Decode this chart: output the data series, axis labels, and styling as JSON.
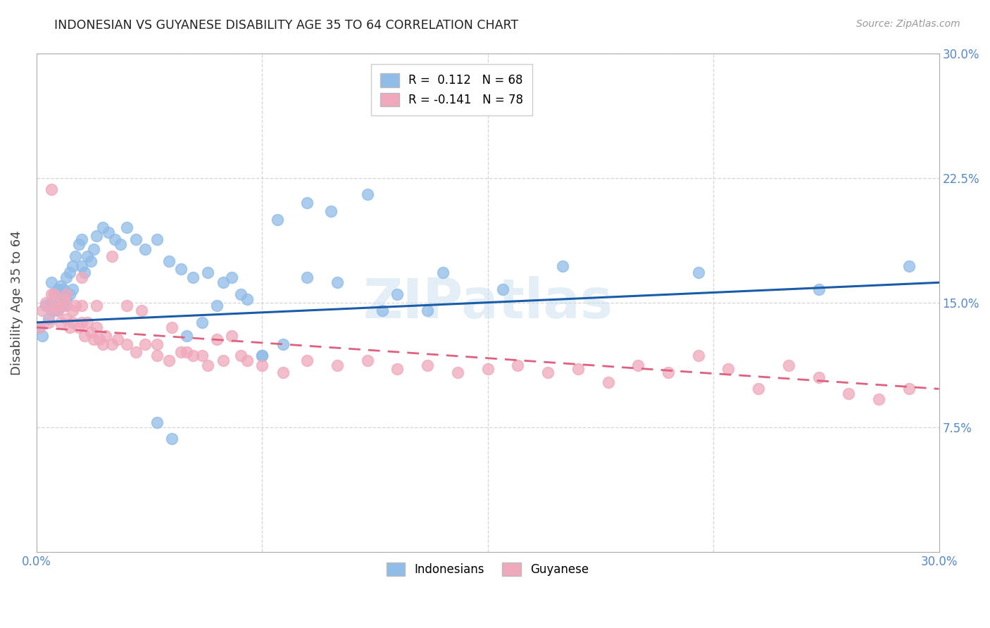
{
  "title": "INDONESIAN VS GUYANESE DISABILITY AGE 35 TO 64 CORRELATION CHART",
  "source": "Source: ZipAtlas.com",
  "ylabel": "Disability Age 35 to 64",
  "xlim": [
    0.0,
    0.3
  ],
  "ylim": [
    0.0,
    0.3
  ],
  "legend_label_indonesians": "Indonesians",
  "legend_label_guyanese": "Guyanese",
  "watermark": "ZIPatlas",
  "indonesian_color": "#90bce8",
  "guyanese_color": "#f0a8bc",
  "indonesian_line_color": "#1a5ca8",
  "guyanese_line_color": "#e06080",
  "r_indo_label": "R =  0.112",
  "n_indo_label": "N = 68",
  "r_guy_label": "R = -0.141",
  "n_guy_label": "N = 78",
  "indo_x": [
    0.001,
    0.002,
    0.003,
    0.004,
    0.005,
    0.005,
    0.006,
    0.006,
    0.007,
    0.007,
    0.008,
    0.008,
    0.009,
    0.009,
    0.01,
    0.01,
    0.011,
    0.011,
    0.012,
    0.012,
    0.013,
    0.014,
    0.015,
    0.015,
    0.016,
    0.017,
    0.018,
    0.019,
    0.02,
    0.022,
    0.024,
    0.026,
    0.028,
    0.03,
    0.033,
    0.036,
    0.04,
    0.044,
    0.048,
    0.052,
    0.057,
    0.062,
    0.068,
    0.075,
    0.082,
    0.09,
    0.098,
    0.11,
    0.12,
    0.13,
    0.04,
    0.045,
    0.05,
    0.055,
    0.06,
    0.065,
    0.07,
    0.075,
    0.08,
    0.09,
    0.1,
    0.115,
    0.135,
    0.155,
    0.175,
    0.22,
    0.26,
    0.29
  ],
  "indo_y": [
    0.135,
    0.13,
    0.148,
    0.14,
    0.15,
    0.162,
    0.145,
    0.155,
    0.158,
    0.145,
    0.155,
    0.16,
    0.148,
    0.158,
    0.152,
    0.165,
    0.155,
    0.168,
    0.158,
    0.172,
    0.178,
    0.185,
    0.172,
    0.188,
    0.168,
    0.178,
    0.175,
    0.182,
    0.19,
    0.195,
    0.192,
    0.188,
    0.185,
    0.195,
    0.188,
    0.182,
    0.188,
    0.175,
    0.17,
    0.165,
    0.168,
    0.162,
    0.155,
    0.118,
    0.125,
    0.165,
    0.205,
    0.215,
    0.155,
    0.145,
    0.078,
    0.068,
    0.13,
    0.138,
    0.148,
    0.165,
    0.152,
    0.118,
    0.2,
    0.21,
    0.162,
    0.145,
    0.168,
    0.158,
    0.172,
    0.168,
    0.158,
    0.172
  ],
  "guy_x": [
    0.001,
    0.002,
    0.003,
    0.004,
    0.005,
    0.005,
    0.006,
    0.006,
    0.007,
    0.008,
    0.008,
    0.009,
    0.01,
    0.01,
    0.011,
    0.012,
    0.012,
    0.013,
    0.014,
    0.015,
    0.015,
    0.016,
    0.017,
    0.018,
    0.019,
    0.02,
    0.021,
    0.022,
    0.023,
    0.025,
    0.027,
    0.03,
    0.033,
    0.036,
    0.04,
    0.044,
    0.048,
    0.052,
    0.057,
    0.062,
    0.068,
    0.075,
    0.082,
    0.09,
    0.1,
    0.11,
    0.12,
    0.13,
    0.14,
    0.15,
    0.16,
    0.17,
    0.18,
    0.19,
    0.2,
    0.21,
    0.22,
    0.23,
    0.24,
    0.25,
    0.26,
    0.27,
    0.28,
    0.29,
    0.005,
    0.01,
    0.015,
    0.02,
    0.025,
    0.03,
    0.035,
    0.04,
    0.045,
    0.05,
    0.055,
    0.06,
    0.065,
    0.07
  ],
  "guy_y": [
    0.135,
    0.145,
    0.15,
    0.138,
    0.155,
    0.145,
    0.148,
    0.155,
    0.145,
    0.148,
    0.138,
    0.152,
    0.14,
    0.148,
    0.135,
    0.145,
    0.138,
    0.148,
    0.135,
    0.138,
    0.148,
    0.13,
    0.138,
    0.132,
    0.128,
    0.135,
    0.128,
    0.125,
    0.13,
    0.125,
    0.128,
    0.125,
    0.12,
    0.125,
    0.118,
    0.115,
    0.12,
    0.118,
    0.112,
    0.115,
    0.118,
    0.112,
    0.108,
    0.115,
    0.112,
    0.115,
    0.11,
    0.112,
    0.108,
    0.11,
    0.112,
    0.108,
    0.11,
    0.102,
    0.112,
    0.108,
    0.118,
    0.11,
    0.098,
    0.112,
    0.105,
    0.095,
    0.092,
    0.098,
    0.218,
    0.155,
    0.165,
    0.148,
    0.178,
    0.148,
    0.145,
    0.125,
    0.135,
    0.12,
    0.118,
    0.128,
    0.13,
    0.115
  ]
}
